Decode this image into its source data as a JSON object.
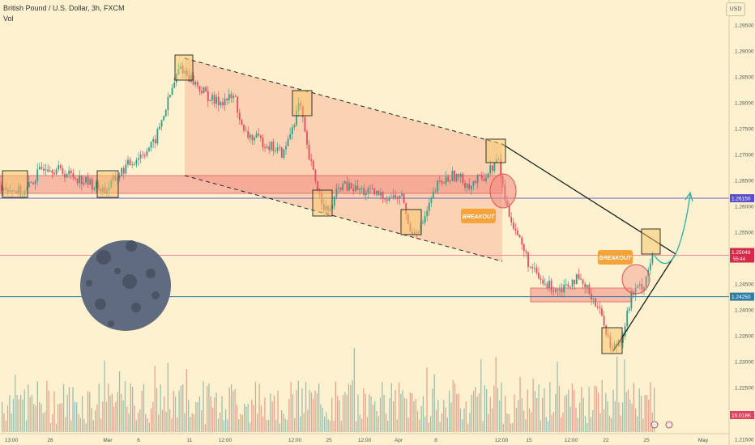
{
  "header": {
    "title": "British Pound / U.S. Dollar, 3h, FXCM",
    "vol_label": "Vol",
    "currency": "USD"
  },
  "chart_data": {
    "type": "candlestick",
    "y_axis": {
      "ticks": [
        "1.29500",
        "1.29000",
        "1.28500",
        "1.28000",
        "1.27500",
        "1.27000",
        "1.26500",
        "1.26000",
        "1.25500",
        "1.25000",
        "1.24500",
        "1.24000",
        "1.23500",
        "1.23000",
        "1.22500",
        "1.22000",
        "1.21500"
      ],
      "range": [
        1.2145,
        1.2995
      ]
    },
    "x_axis": {
      "ticks": [
        "13:00",
        "26",
        "Mar",
        "6",
        "11",
        "12:00",
        "12:00",
        "25",
        "12:00",
        "Apr",
        "8",
        "12:00",
        "15",
        "12:00",
        "22",
        "25",
        "May"
      ]
    },
    "price_labels": [
      {
        "value": "1.26150",
        "color": "#5a4fcf"
      },
      {
        "value": "1.25049",
        "sub": "55:44",
        "color": "#d8294b"
      },
      {
        "value": "1.24250",
        "color": "#2e7fa8"
      },
      {
        "value": "16.018K",
        "color": "#e0415e"
      }
    ],
    "horizontal_lines": [
      {
        "value": 1.2615,
        "color": "#6b5fcf"
      },
      {
        "value": 1.2425,
        "color": "#2e7fa8"
      },
      {
        "value": 1.25049,
        "color": "#e88a98"
      }
    ],
    "annotations": [
      {
        "type": "label",
        "text": "BREAKOUT"
      },
      {
        "type": "label",
        "text": "BREAKOUT"
      }
    ],
    "colors": {
      "up": "#2e9e8f",
      "down": "#e84a5f",
      "channel_fill": "#f9b89a",
      "zone_fill": "#f28b82",
      "moon": "#5f6b7f",
      "callout": "#f5a33a",
      "arrow": "#2ab3a0"
    }
  }
}
